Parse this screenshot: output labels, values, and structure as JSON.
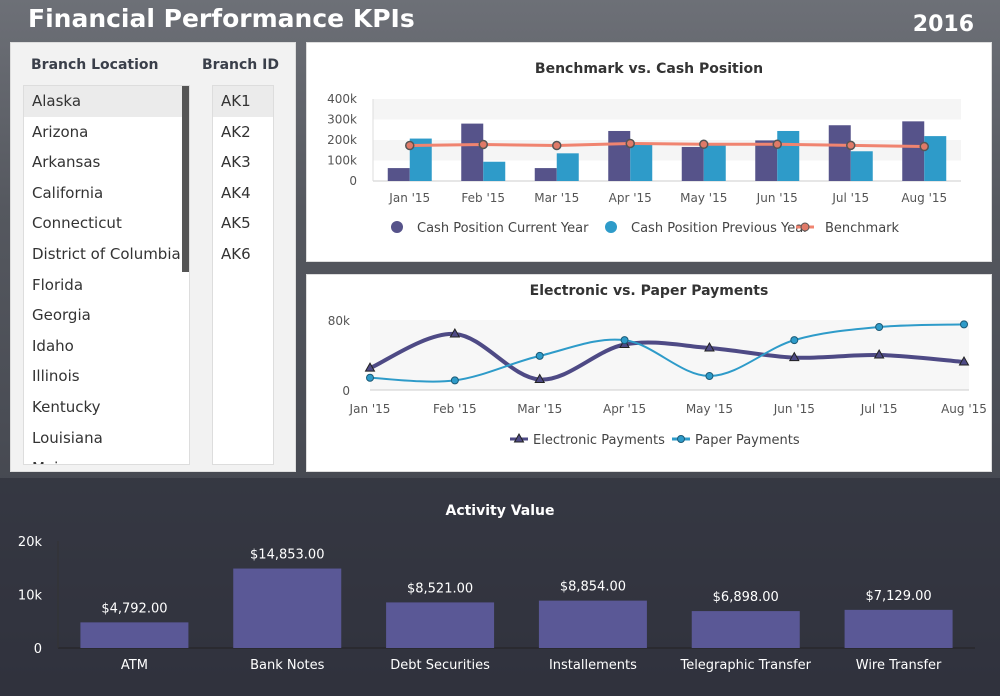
{
  "header": {
    "title": "Financial Performance KPIs",
    "year": "2016"
  },
  "branches": {
    "location_header": "Branch Location",
    "id_header": "Branch ID",
    "locations": [
      "Alaska",
      "Arizona",
      "Arkansas",
      "California",
      "Connecticut",
      "District of Columbia",
      "Florida",
      "Georgia",
      "Idaho",
      "Illinois",
      "Kentucky",
      "Louisiana",
      "Maine"
    ],
    "ids": [
      "AK1",
      "AK2",
      "AK3",
      "AK4",
      "AK5",
      "AK6"
    ],
    "selected": "Alaska"
  },
  "chart_data": [
    {
      "type": "bar",
      "title": "Benchmark vs. Cash Position",
      "categories": [
        "Jan '15",
        "Feb '15",
        "Mar '15",
        "Apr '15",
        "May '15",
        "Jun '15",
        "Jul '15",
        "Aug '15"
      ],
      "yticks": [
        "0",
        "100k",
        "200k",
        "300k",
        "400k"
      ],
      "ylim": [
        0,
        400000
      ],
      "series": [
        {
          "name": "Cash Position Current Year",
          "type": "bar",
          "color": "#56538a",
          "values": [
            63000,
            280000,
            63000,
            244000,
            166000,
            198000,
            272000,
            291000
          ]
        },
        {
          "name": "Cash Position Previous Year",
          "type": "bar",
          "color": "#2e9bc9",
          "values": [
            207000,
            94000,
            135000,
            178000,
            174000,
            244000,
            145000,
            219000
          ]
        },
        {
          "name": "Benchmark",
          "type": "line",
          "color": "#f08470",
          "values": [
            173000,
            178000,
            173000,
            183000,
            179000,
            179000,
            174000,
            168000
          ]
        }
      ],
      "legend": "bottom"
    },
    {
      "type": "line",
      "title": "Electronic vs. Paper Payments",
      "categories": [
        "Jan '15",
        "Feb '15",
        "Mar '15",
        "Apr '15",
        "May '15",
        "Jun '15",
        "Jul '15",
        "Aug '15"
      ],
      "yticks": [
        "0",
        "80k"
      ],
      "ylim": [
        0,
        80000
      ],
      "series": [
        {
          "name": "Electronic Payments",
          "color": "#4e4a85",
          "marker": "triangle",
          "values": [
            25000,
            64000,
            12000,
            52000,
            48000,
            37000,
            40000,
            32000
          ]
        },
        {
          "name": "Paper Payments",
          "color": "#2e9bc9",
          "marker": "circle",
          "values": [
            14000,
            11000,
            39000,
            57000,
            16000,
            57000,
            72000,
            75000
          ]
        }
      ],
      "legend": "bottom"
    },
    {
      "type": "bar",
      "title": "Activity Value",
      "categories": [
        "ATM",
        "Bank Notes",
        "Debt Securities",
        "Installements",
        "Telegraphic Transfer",
        "Wire Transfer"
      ],
      "values": [
        4792,
        14853,
        8521,
        8854,
        6898,
        7129
      ],
      "labels": [
        "$4,792.00",
        "$14,853.00",
        "$8,521.00",
        "$8,854.00",
        "$6,898.00",
        "$7,129.00"
      ],
      "yticks": [
        "0",
        "10k",
        "20k"
      ],
      "ylim": [
        0,
        20000
      ],
      "color": "#5a5896"
    }
  ]
}
